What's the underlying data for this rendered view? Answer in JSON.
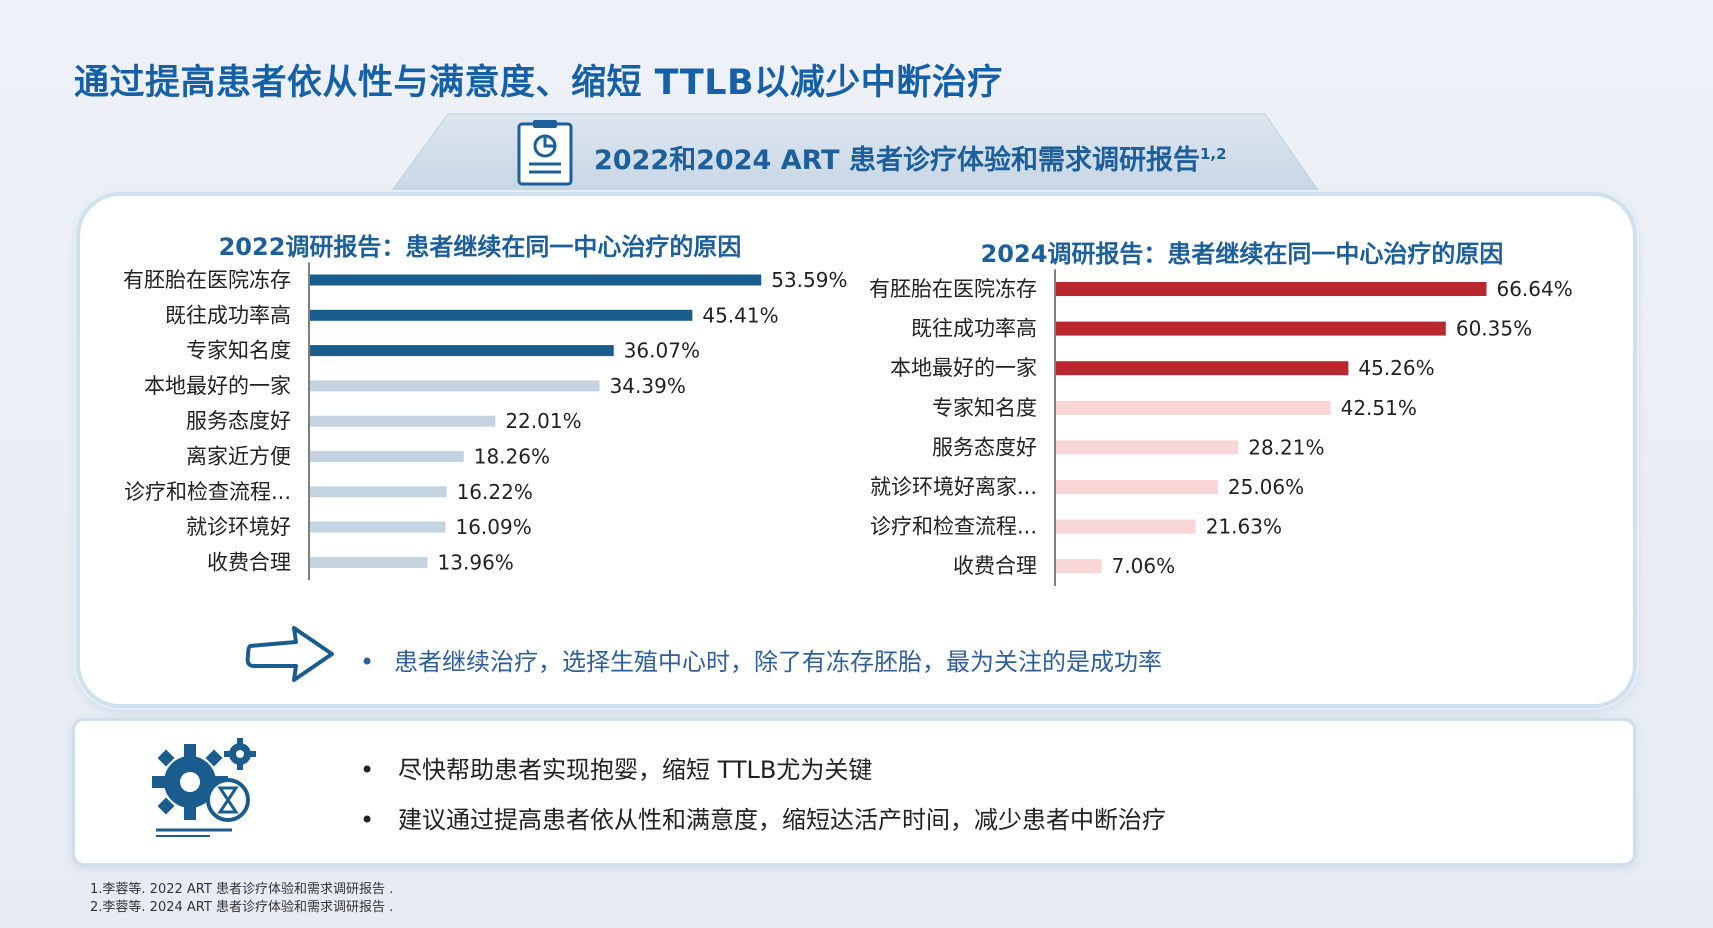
{
  "page_title": "通过提高患者依从性与满意度、缩短 TTLB以减少中断治疗",
  "banner": {
    "title": "2022和2024 ART 患者诊疗体验和需求调研报告",
    "superscript": "1,2"
  },
  "chart_data": [
    {
      "type": "bar",
      "orientation": "horizontal",
      "title": "2022调研报告：患者继续在同一中心治疗的原因",
      "categories": [
        "有胚胎在医院冻存",
        "既往成功率高",
        "专家知名度",
        "本地最好的一家",
        "服务态度好",
        "离家近方便",
        "诊疗和检查流程...",
        "就诊环境好",
        "收费合理"
      ],
      "values": [
        53.59,
        45.41,
        36.07,
        34.39,
        22.01,
        18.26,
        16.22,
        16.09,
        13.96
      ],
      "value_labels": [
        "53.59%",
        "45.41%",
        "36.07%",
        "34.39%",
        "22.01%",
        "18.26%",
        "16.22%",
        "16.09%",
        "13.96%"
      ],
      "unit": "%",
      "highlight_count": 3,
      "colors": {
        "highlight": "#1b5c8e",
        "normal": "#c3d3df"
      }
    },
    {
      "type": "bar",
      "orientation": "horizontal",
      "title": "2024调研报告：患者继续在同一中心治疗的原因",
      "categories": [
        "有胚胎在医院冻存",
        "既往成功率高",
        "本地最好的一家",
        "专家知名度",
        "服务态度好",
        "就诊环境好离家...",
        "诊疗和检查流程...",
        "收费合理"
      ],
      "values": [
        66.64,
        60.35,
        45.26,
        42.51,
        28.21,
        25.06,
        21.63,
        7.06
      ],
      "value_labels": [
        "66.64%",
        "60.35%",
        "45.26%",
        "42.51%",
        "28.21%",
        "25.06%",
        "21.63%",
        "7.06%"
      ],
      "unit": "%",
      "highlight_count": 3,
      "colors": {
        "highlight": "#b8282e",
        "normal": "#f8d5d7"
      }
    }
  ],
  "conclusion": "患者继续治疗，选择生殖中心时，除了有冻存胚胎，最为关注的是成功率",
  "bullets": [
    "尽快帮助患者实现抱婴，缩短 TTLB尤为关键",
    "建议通过提高患者依从性和满意度，缩短达活产时间，减少患者中断治疗"
  ],
  "bullet_symbol": "•",
  "footnotes": [
    "1.李蓉等. 2022 ART 患者诊疗体验和需求调研报告 .",
    "2.李蓉等. 2024 ART 患者诊疗体验和需求调研报告 ."
  ],
  "icons": {
    "report": "report-chart-icon",
    "arrow": "right-arrow-icon",
    "gear": "gear-hourglass-icon"
  },
  "colors": {
    "title": "#1560a6",
    "banner_text": "#1c5f9b",
    "note_text": "#2f5f9a"
  }
}
